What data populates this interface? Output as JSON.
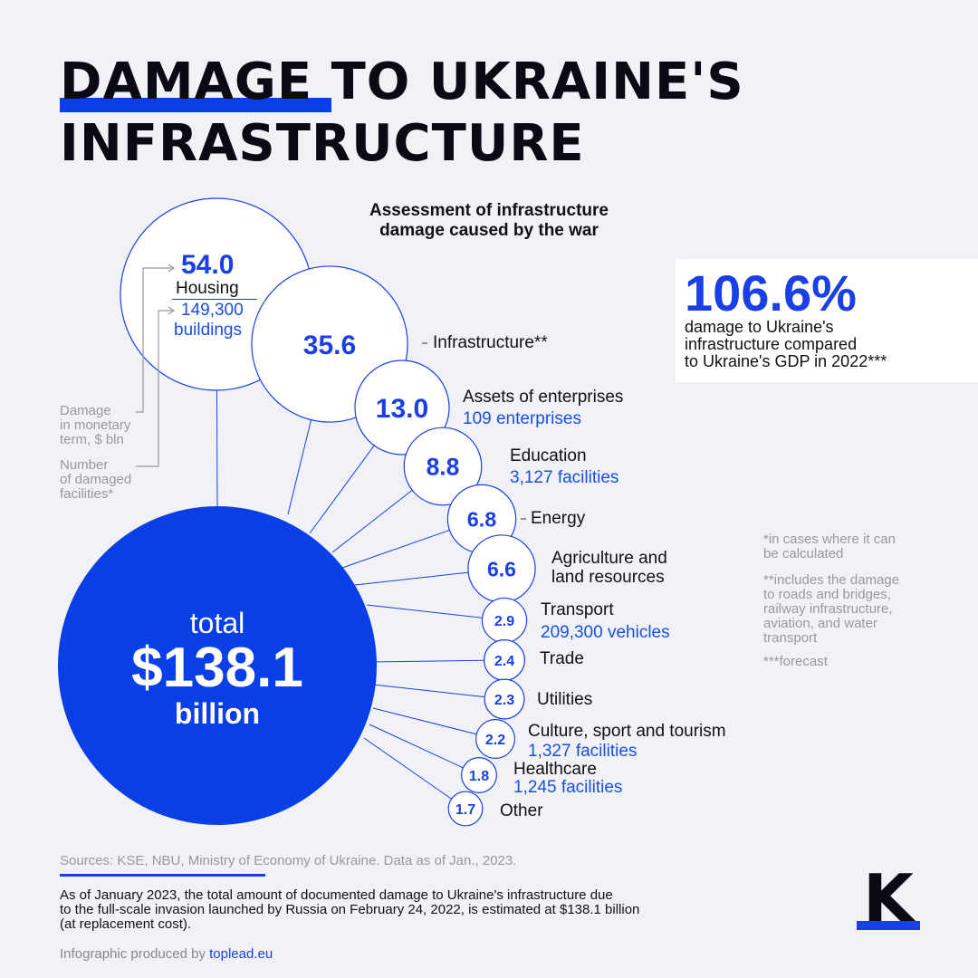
{
  "title": {
    "line1": "DAMAGE TO UKRAINE'S",
    "line2": "INFRASTRUCTURE"
  },
  "subtitle": {
    "line1": "Assessment of infrastructure",
    "line2": "damage caused by the war"
  },
  "total": {
    "label": "total",
    "value": "$138.1",
    "unit": "billion"
  },
  "gdp_box": {
    "value": "106.6%",
    "description_lines": [
      "damage to Ukraine's",
      "infrastructure compared",
      "to Ukraine's GDP in 2022***"
    ]
  },
  "legend": {
    "monetary_lines": [
      "Damage",
      "in monetary",
      "term, $ bln"
    ],
    "count_lines": [
      "Number",
      "of damaged",
      "facilities*"
    ]
  },
  "footnotes": {
    "note1_lines": [
      "*in cases where it can",
      "be calculated"
    ],
    "note2_lines": [
      "**includes the damage",
      "to roads and bridges,",
      "railway infrastructure,",
      "aviation, and water",
      "transport"
    ],
    "note3": "***forecast"
  },
  "sources": "Sources: KSE, NBU, Ministry of Economy of Ukraine. Data as of Jan., 2023.",
  "summary_lines": [
    "As of January 2023, the total amount of documented damage to Ukraine's infrastructure due",
    "to the full-scale invasion launched by Russia on February 24, 2022, is estimated at $138.1 billion",
    "(at replacement cost)."
  ],
  "credit": {
    "prefix": "Infographic produced by ",
    "link": "toplead.eu"
  },
  "logo_letter": "K",
  "colors": {
    "accent": "#1a3fe6",
    "total_fill": "#0a3ee6",
    "background": "#f1f2f7",
    "muted": "#999999"
  },
  "chart_data": {
    "type": "bubble",
    "unit": "$ bln",
    "total": 138.1,
    "categories": [
      {
        "name": "Housing",
        "value": 54.0,
        "value_label": "54.0",
        "count": "149,300 buildings",
        "count_lines": [
          "149,300",
          "buildings"
        ]
      },
      {
        "name": "Infrastructure**",
        "value": 35.6,
        "value_label": "35.6"
      },
      {
        "name": "Assets of enterprises",
        "value": 13.0,
        "value_label": "13.0",
        "count": "109 enterprises"
      },
      {
        "name": "Education",
        "value": 8.8,
        "value_label": "8.8",
        "count": "3,127 facilities"
      },
      {
        "name": "Energy",
        "value": 6.8,
        "value_label": "6.8"
      },
      {
        "name": "Agriculture and land resources",
        "value": 6.6,
        "value_label": "6.6",
        "name_lines": [
          "Agriculture and",
          "land resources"
        ]
      },
      {
        "name": "Transport",
        "value": 2.9,
        "value_label": "2.9",
        "count": "209,300 vehicles"
      },
      {
        "name": "Trade",
        "value": 2.4,
        "value_label": "2.4"
      },
      {
        "name": "Utilities",
        "value": 2.3,
        "value_label": "2.3"
      },
      {
        "name": "Culture, sport and tourism",
        "value": 2.2,
        "value_label": "2.2",
        "count": "1,327 facilities"
      },
      {
        "name": "Healthcare",
        "value": 1.8,
        "value_label": "1.8",
        "count": "1,245 facilities"
      },
      {
        "name": "Other",
        "value": 1.7,
        "value_label": "1.7"
      }
    ]
  }
}
